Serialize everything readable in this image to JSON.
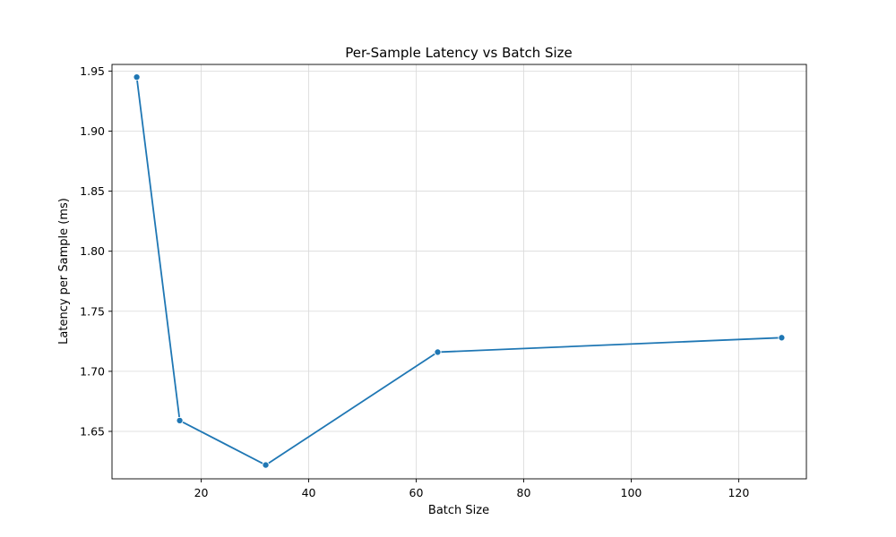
{
  "chart_data": {
    "type": "line",
    "title": "Per-Sample Latency vs Batch Size",
    "xlabel": "Batch Size",
    "ylabel": "Latency per Sample (ms)",
    "xlim": [
      3.4,
      132.6
    ],
    "ylim": [
      1.6105,
      1.9555
    ],
    "xticks": [
      20,
      40,
      60,
      80,
      100,
      120
    ],
    "yticks": [
      1.65,
      1.7,
      1.75,
      1.8,
      1.85,
      1.9,
      1.95
    ],
    "xtick_labels": [
      "20",
      "40",
      "60",
      "80",
      "100",
      "120"
    ],
    "ytick_labels": [
      "1.65",
      "1.70",
      "1.75",
      "1.80",
      "1.85",
      "1.90",
      "1.95"
    ],
    "grid": true,
    "series": [
      {
        "color": "#1f77b4",
        "marker": "circle",
        "points": [
          {
            "x": 8,
            "y": 1.945
          },
          {
            "x": 16,
            "y": 1.659
          },
          {
            "x": 32,
            "y": 1.622
          },
          {
            "x": 64,
            "y": 1.716
          },
          {
            "x": 128,
            "y": 1.728
          }
        ]
      }
    ]
  }
}
